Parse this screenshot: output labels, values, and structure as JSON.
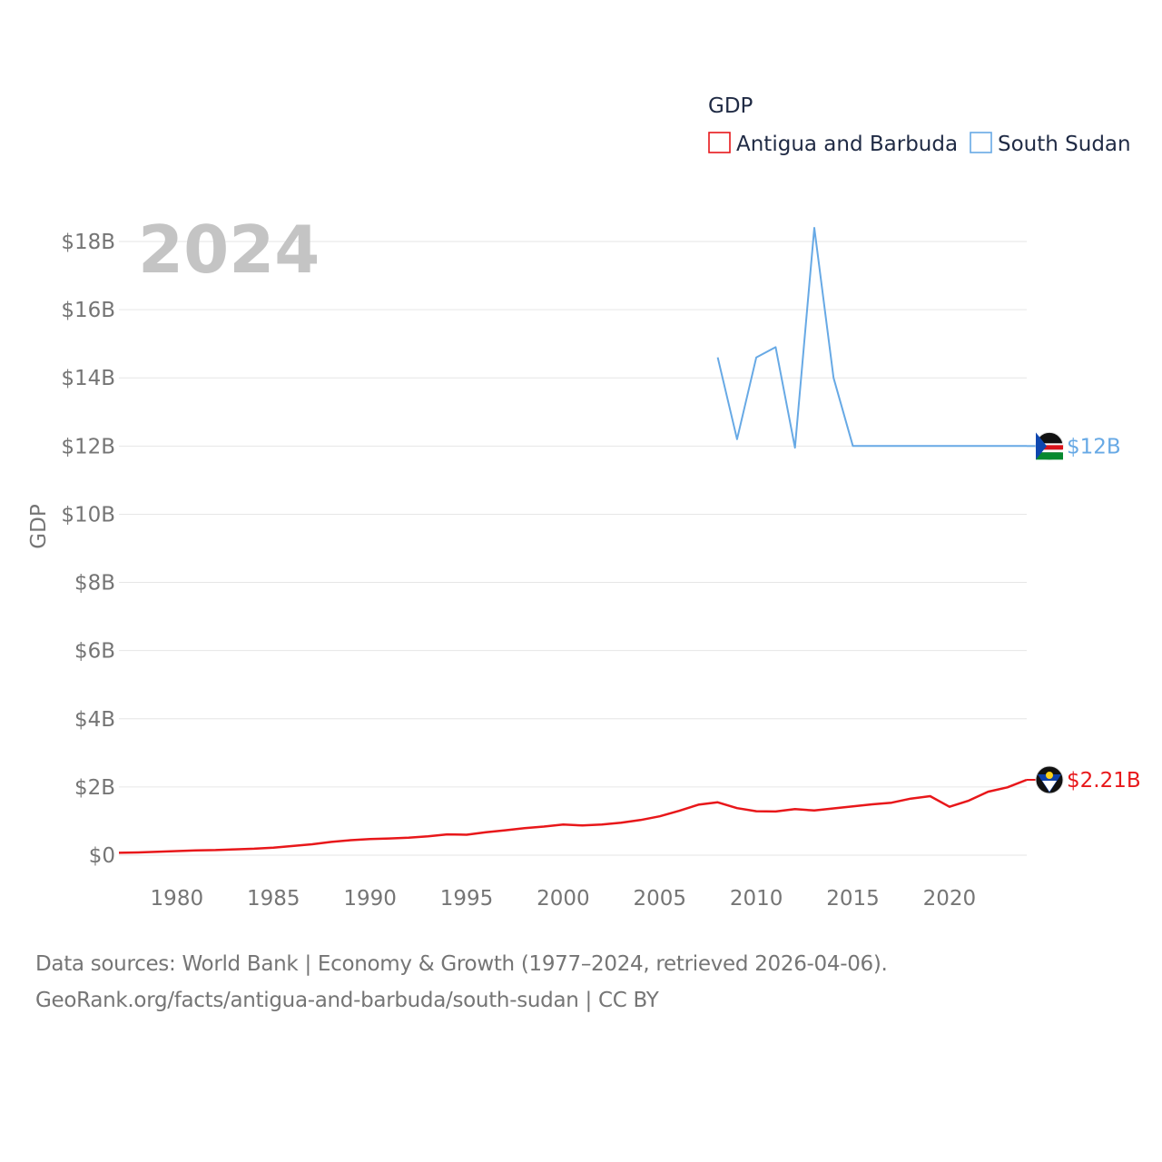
{
  "chart_data": {
    "type": "line",
    "title": "GDP",
    "ylabel": "GDP",
    "xlabel": "",
    "year_overlay": "2024",
    "legend_title": "GDP",
    "legend_position": "top-right",
    "grid": true,
    "xlim": [
      1977,
      2024
    ],
    "ylim": [
      0,
      18
    ],
    "y_unit": "billion USD",
    "x_ticks": [
      1980,
      1985,
      1990,
      1995,
      2000,
      2005,
      2010,
      2015,
      2020
    ],
    "x_tick_labels": [
      "1980",
      "1985",
      "1990",
      "1995",
      "2000",
      "2005",
      "2010",
      "2015",
      "2020"
    ],
    "y_ticks": [
      0,
      2,
      4,
      6,
      8,
      10,
      12,
      14,
      16,
      18
    ],
    "y_tick_labels": [
      "$0",
      "$2B",
      "$4B",
      "$6B",
      "$8B",
      "$10B",
      "$12B",
      "$14B",
      "$16B",
      "$18B"
    ],
    "series": [
      {
        "name": "Antigua and Barbuda",
        "color": "#e8171a",
        "end_label": "$2.21B",
        "x": [
          1977,
          1978,
          1979,
          1980,
          1981,
          1982,
          1983,
          1984,
          1985,
          1986,
          1987,
          1988,
          1989,
          1990,
          1991,
          1992,
          1993,
          1994,
          1995,
          1996,
          1997,
          1998,
          1999,
          2000,
          2001,
          2002,
          2003,
          2004,
          2005,
          2006,
          2007,
          2008,
          2009,
          2010,
          2011,
          2012,
          2013,
          2014,
          2015,
          2016,
          2017,
          2018,
          2019,
          2020,
          2021,
          2022,
          2023,
          2024
        ],
        "values": [
          0.07,
          0.08,
          0.1,
          0.12,
          0.14,
          0.15,
          0.17,
          0.19,
          0.22,
          0.27,
          0.32,
          0.39,
          0.44,
          0.47,
          0.49,
          0.51,
          0.55,
          0.61,
          0.6,
          0.67,
          0.73,
          0.79,
          0.84,
          0.9,
          0.87,
          0.9,
          0.95,
          1.03,
          1.14,
          1.3,
          1.48,
          1.55,
          1.38,
          1.29,
          1.28,
          1.35,
          1.31,
          1.37,
          1.43,
          1.49,
          1.54,
          1.66,
          1.73,
          1.42,
          1.6,
          1.86,
          1.99,
          2.21
        ]
      },
      {
        "name": "South Sudan",
        "color": "#67a9e5",
        "end_label": "$12B",
        "x": [
          2008,
          2009,
          2010,
          2011,
          2012,
          2013,
          2014,
          2015,
          2016,
          2017,
          2018,
          2019,
          2020,
          2021,
          2022,
          2023,
          2024
        ],
        "values": [
          14.6,
          12.2,
          14.6,
          14.9,
          11.95,
          18.4,
          14.0,
          12.0,
          12.0,
          12.0,
          12.0,
          12.0,
          12.0,
          12.0,
          12.0,
          12.0,
          12.0
        ]
      }
    ]
  },
  "footer": {
    "line1": "Data sources: World Bank | Economy & Growth (1977–2024, retrieved 2026-04-06).",
    "line2": "GeoRank.org/facts/antigua-and-barbuda/south-sudan | CC BY"
  }
}
